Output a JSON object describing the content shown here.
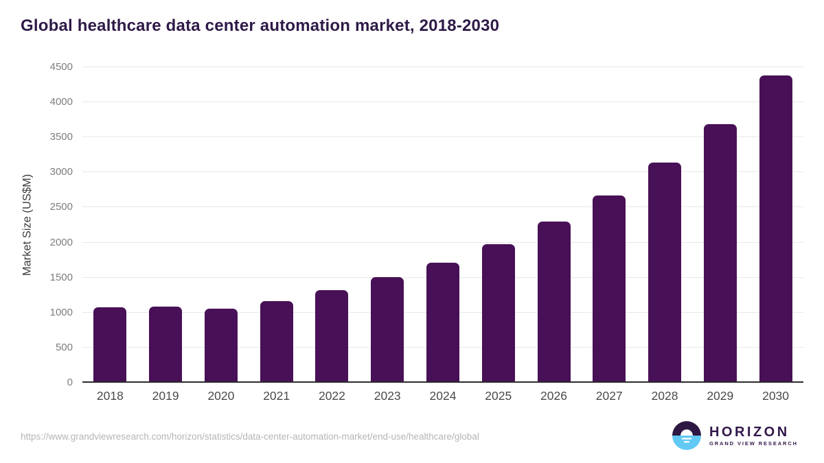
{
  "title": "Global healthcare data center automation market, 2018-2030",
  "footer": {
    "source_url": "https://www.grandviewresearch.com/horizon/statistics/data-center-automation-market/end-use/healthcare/global"
  },
  "logo": {
    "name": "HORIZON",
    "subtitle": "GRAND VIEW RESEARCH"
  },
  "colors": {
    "bar": "#481056",
    "title_text": "#2E1A47",
    "gridline": "#e8e8e8",
    "axis_line": "#2b2b2b",
    "y_tick_text": "#7d7d7d",
    "x_tick_text": "#4a4a4a",
    "footer_text": "#b5b5b5",
    "logo_purple": "#2d1843",
    "logo_blue": "#62c9f4"
  },
  "chart_data": {
    "type": "bar",
    "title": "Global healthcare data center automation market, 2018-2030",
    "categories": [
      "2018",
      "2019",
      "2020",
      "2021",
      "2022",
      "2023",
      "2024",
      "2025",
      "2026",
      "2027",
      "2028",
      "2029",
      "2030"
    ],
    "values": [
      1080,
      1085,
      1055,
      1165,
      1320,
      1505,
      1715,
      1980,
      2295,
      2675,
      3140,
      3685,
      4380
    ],
    "xlabel": "",
    "ylabel": "Market Size (US$M)",
    "ylim": [
      0,
      4500
    ],
    "ytick_step": 500,
    "grid": true,
    "legend_position": "none"
  }
}
